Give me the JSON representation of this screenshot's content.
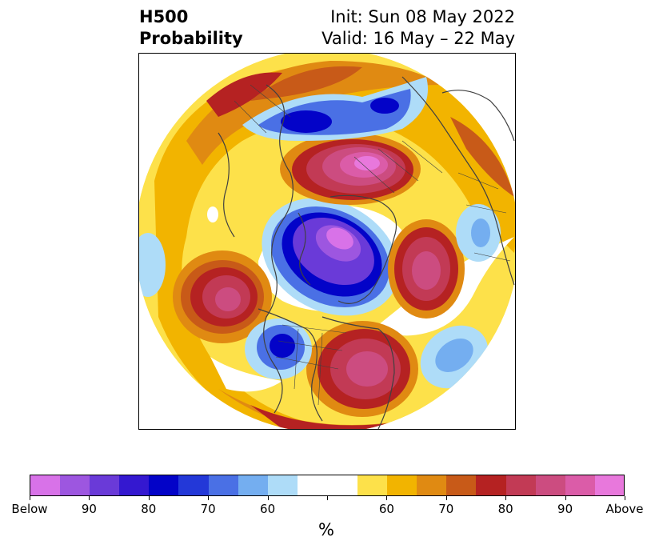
{
  "header": {
    "title_line1": "H500",
    "title_line2": "Probability",
    "init_text": "Init: Sun 08 May 2022",
    "valid_text": "Valid: 16 May – 22 May"
  },
  "colorbar": {
    "unit": "%",
    "colors": [
      "#d872e8",
      "#9d56e0",
      "#6a3ad8",
      "#3418d0",
      "#0303c8",
      "#2338d8",
      "#4a70e5",
      "#74aef0",
      "#aedcf8",
      "#ffffff",
      "#ffffff",
      "#fde14a",
      "#f2b400",
      "#e08a12",
      "#c85a18",
      "#b52222",
      "#c23a55",
      "#cc4c80",
      "#db5ca8",
      "#e878dc"
    ],
    "ticks": [
      "Below",
      "90",
      "80",
      "70",
      "60",
      "",
      "60",
      "70",
      "80",
      "90",
      "Above"
    ]
  },
  "map": {
    "palette": {
      "below_95": "#d872e8",
      "below_90": "#6a3ad8",
      "below_80": "#0303c8",
      "below_70": "#4a70e5",
      "below_60": "#aedcf8",
      "above_60": "#fde14a",
      "above_65": "#f2b400",
      "above_70": "#e08a12",
      "above_75": "#c85a18",
      "above_80": "#b52222",
      "above_85": "#c23a55",
      "above_90": "#cc4c80",
      "above_95": "#e878dc"
    },
    "border_color": "#404040"
  }
}
